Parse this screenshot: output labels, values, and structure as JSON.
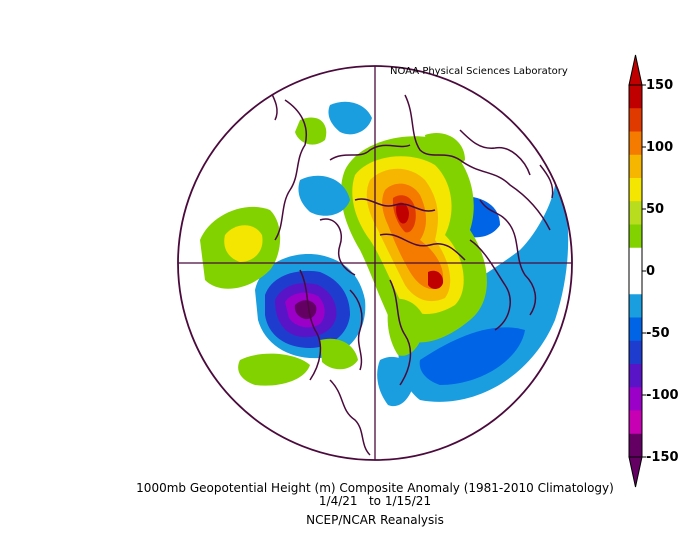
{
  "credit": "NOAA Physical Sciences Laboratory",
  "caption": {
    "line1": "1000mb Geopotential Height (m) Composite Anomaly (1981-2010 Climatology)",
    "line2": "1/4/21   to 1/15/21",
    "line3": "NCEP/NCAR Reanalysis"
  },
  "colorbar": {
    "levels": [
      {
        "label": "150",
        "value": 150
      },
      {
        "label": "100",
        "value": 100
      },
      {
        "label": "50",
        "value": 50
      },
      {
        "label": "0",
        "value": 0
      },
      {
        "label": "-50",
        "value": -50
      },
      {
        "label": "-100",
        "value": -100
      },
      {
        "label": "-150",
        "value": -150
      }
    ],
    "colors": [
      "#c00000",
      "#e03a00",
      "#f47a00",
      "#f6b600",
      "#f4e600",
      "#b8dc1e",
      "#82d200",
      "#ffffff",
      "#ffffff",
      "#1a9ee0",
      "#0064e6",
      "#1e3ccd",
      "#5a14c8",
      "#9a00c8",
      "#c800b4",
      "#640064"
    ]
  }
}
